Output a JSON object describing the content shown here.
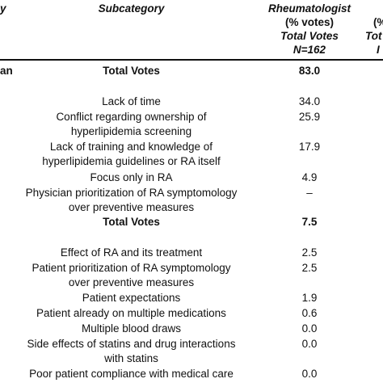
{
  "header": {
    "category": "y",
    "subcategory": "Subcategory",
    "rheum": [
      "Rheumatologist",
      "(% votes)",
      "Total Votes",
      "N=162"
    ],
    "col3": [
      "(%",
      "Tot",
      "I"
    ]
  },
  "section1": {
    "category": "an",
    "total_label": "Total Votes",
    "total_value": "83.0",
    "rows": [
      {
        "lines": [
          "Lack of time"
        ],
        "value": "34.0"
      },
      {
        "lines": [
          "Conflict regarding ownership of",
          "hyperlipidemia screening"
        ],
        "value": "25.9"
      },
      {
        "lines": [
          "Lack of training and knowledge of",
          "hyperlipidemia guidelines or RA itself"
        ],
        "value": "17.9"
      },
      {
        "lines": [
          "Focus only in RA"
        ],
        "value": "4.9"
      },
      {
        "lines": [
          "Physician prioritization of RA symptomology",
          "over preventive measures"
        ],
        "value": "–"
      }
    ]
  },
  "section2": {
    "total_label": "Total Votes",
    "total_value": "7.5",
    "rows": [
      {
        "lines": [
          "Effect of RA and its treatment"
        ],
        "value": "2.5"
      },
      {
        "lines": [
          "Patient prioritization of RA symptomology",
          "over preventive measures"
        ],
        "value": "2.5"
      },
      {
        "lines": [
          "Patient expectations"
        ],
        "value": "1.9"
      },
      {
        "lines": [
          "Patient already on multiple medications"
        ],
        "value": "0.6"
      },
      {
        "lines": [
          "Multiple blood draws"
        ],
        "value": "0.0"
      },
      {
        "lines": [
          "Side effects of statins and drug interactions",
          "with statins"
        ],
        "value": "0.0"
      },
      {
        "lines": [
          "Poor patient compliance with medical care"
        ],
        "value": "0.0"
      }
    ]
  }
}
